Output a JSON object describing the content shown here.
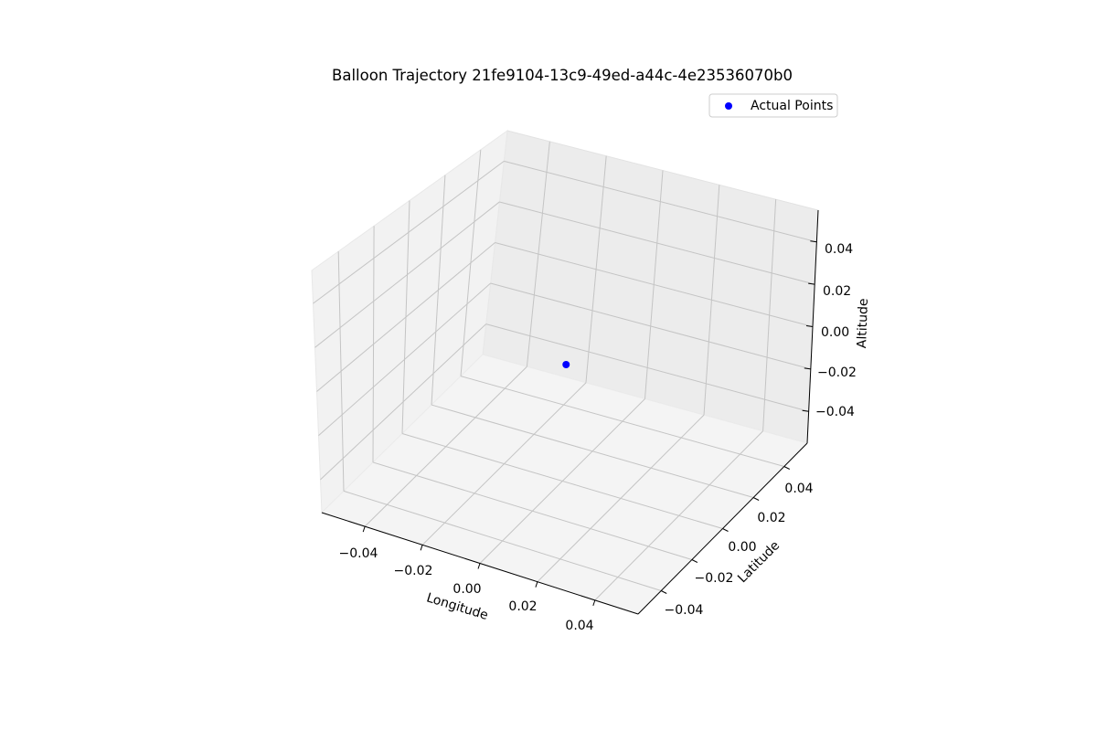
{
  "chart_data": {
    "type": "scatter",
    "projection": "3d",
    "title": "Balloon Trajectory 21fe9104-13c9-49ed-a44c-4e23536070b0",
    "xlabel": "Longitude",
    "ylabel": "Latitude",
    "zlabel": "Altitude",
    "xlim": [
      -0.055,
      0.055
    ],
    "ylim": [
      -0.055,
      0.055
    ],
    "zlim": [
      -0.055,
      0.055
    ],
    "x_ticks": [
      "−0.04",
      "−0.02",
      "0.00",
      "0.02",
      "0.04"
    ],
    "y_ticks": [
      "−0.04",
      "−0.02",
      "0.00",
      "0.02",
      "0.04"
    ],
    "z_ticks": [
      "0.04",
      "0.02",
      "0.00",
      "−0.02",
      "−0.04"
    ],
    "grid": true,
    "legend_position": "top-right",
    "series": [
      {
        "name": "Actual Points",
        "color": "#0000ff",
        "marker": "circle",
        "points": [
          {
            "x": 0.0,
            "y": 0.0,
            "z": 0.0
          }
        ]
      }
    ]
  },
  "colors": {
    "pane_back": "#ececec",
    "pane_left": "#f2f2f2",
    "pane_floor": "#f4f4f4",
    "grid": "#c4c4c4",
    "point": "#0000ff"
  }
}
